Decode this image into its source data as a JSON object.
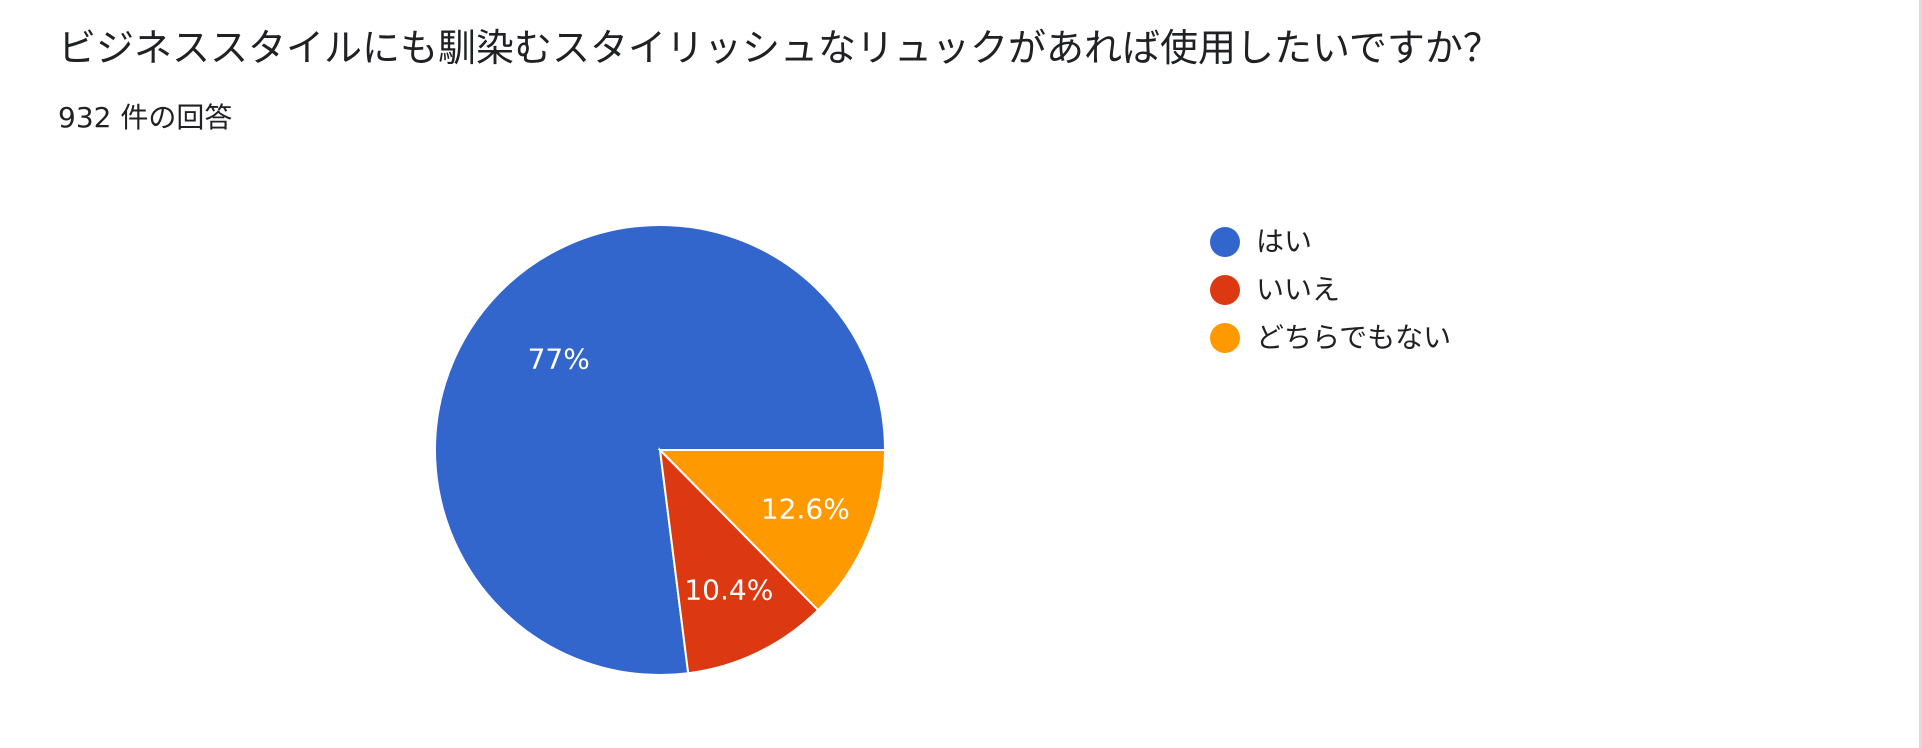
{
  "question": {
    "title": "ビジネススタイルにも馴染むスタイリッシュなリュックがあれば使用したいですか？",
    "response_count": "932 件の回答"
  },
  "legend": {
    "items": [
      {
        "label": "はい",
        "color": "#3366cc"
      },
      {
        "label": "いいえ",
        "color": "#dc3912"
      },
      {
        "label": "どちらでもない",
        "color": "#ff9900"
      }
    ]
  },
  "chart_data": {
    "type": "pie",
    "title": "",
    "legend_position": "right",
    "start": "3 o'clock",
    "direction": "counter-clockwise",
    "slices": [
      {
        "name": "はい",
        "value": 77.0,
        "label": "77%",
        "color": "#3366cc"
      },
      {
        "name": "いいえ",
        "value": 10.4,
        "label": "10.4%",
        "color": "#dc3912"
      },
      {
        "name": "どちらでもない",
        "value": 12.6,
        "label": "12.6%",
        "color": "#ff9900"
      }
    ]
  }
}
